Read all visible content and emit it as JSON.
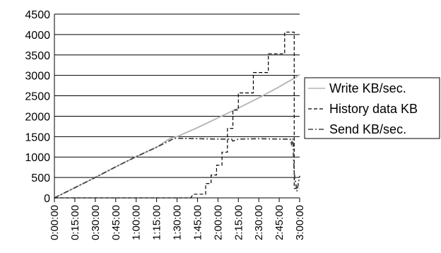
{
  "chart_data": {
    "type": "line",
    "title": "",
    "xlabel": "",
    "ylabel": "",
    "ylim": [
      0,
      4500
    ],
    "yticks": [
      0,
      500,
      1000,
      1500,
      2000,
      2500,
      3000,
      3500,
      4000,
      4500
    ],
    "x_tick_labels": [
      "0:00:00",
      "0:15:00",
      "0:30:00",
      "0:45:00",
      "1:00:00",
      "1:15:00",
      "1:30:00",
      "1:45:00",
      "2:00:00",
      "2:15:00",
      "2:30:00",
      "2:45:00",
      "3:00:00"
    ],
    "grid": "horizontal",
    "legend_position": "right",
    "series": [
      {
        "name": "Write KB/sec.",
        "style": "solid",
        "color": "#b4b4b4",
        "points": [
          [
            "0:00:00",
            0
          ],
          [
            "0:15:00",
            250
          ],
          [
            "0:30:00",
            500
          ],
          [
            "0:45:00",
            760
          ],
          [
            "1:00:00",
            1010
          ],
          [
            "1:15:00",
            1240
          ],
          [
            "1:25:00",
            1460
          ],
          [
            "1:30:00",
            1500
          ],
          [
            "1:45:00",
            1720
          ],
          [
            "2:00:00",
            1960
          ],
          [
            "2:15:00",
            2200
          ],
          [
            "2:30:00",
            2450
          ],
          [
            "2:45:00",
            2720
          ],
          [
            "2:57:00",
            2950
          ],
          [
            "3:00:00",
            3020
          ]
        ]
      },
      {
        "name": "History data KB",
        "style": "dashed",
        "color": "#000000",
        "points": [
          [
            "0:00:00",
            0
          ],
          [
            "1:40:00",
            0
          ],
          [
            "1:42:00",
            90
          ],
          [
            "1:48:00",
            90
          ],
          [
            "1:51:00",
            90
          ],
          [
            "1:51:00",
            350
          ],
          [
            "1:55:00",
            350
          ],
          [
            "1:55:00",
            560
          ],
          [
            "1:59:00",
            560
          ],
          [
            "1:59:00",
            800
          ],
          [
            "2:03:00",
            800
          ],
          [
            "2:03:00",
            1120
          ],
          [
            "2:07:00",
            1120
          ],
          [
            "2:07:00",
            1700
          ],
          [
            "2:11:00",
            1700
          ],
          [
            "2:11:00",
            2150
          ],
          [
            "2:15:00",
            2150
          ],
          [
            "2:15:00",
            2570
          ],
          [
            "2:26:00",
            2570
          ],
          [
            "2:26:00",
            3070
          ],
          [
            "2:37:00",
            3070
          ],
          [
            "2:37:00",
            3530
          ],
          [
            "2:49:00",
            3530
          ],
          [
            "2:49:00",
            4060
          ],
          [
            "2:56:00",
            4060
          ],
          [
            "2:56:00",
            230
          ],
          [
            "3:00:00",
            230
          ]
        ]
      },
      {
        "name": "Send KB/sec.",
        "style": "dash-dot",
        "color": "#444444",
        "points": [
          [
            "0:00:00",
            0
          ],
          [
            "0:15:00",
            250
          ],
          [
            "0:30:00",
            500
          ],
          [
            "0:45:00",
            760
          ],
          [
            "1:00:00",
            1010
          ],
          [
            "1:15:00",
            1240
          ],
          [
            "1:28:00",
            1460
          ],
          [
            "1:45:00",
            1450
          ],
          [
            "2:00:00",
            1440
          ],
          [
            "2:10:00",
            1440
          ],
          [
            "2:11:00",
            1390
          ],
          [
            "2:15:00",
            1440
          ],
          [
            "2:30:00",
            1450
          ],
          [
            "2:45:00",
            1440
          ],
          [
            "2:53:00",
            1440
          ],
          [
            "2:54:00",
            1320
          ],
          [
            "2:55:00",
            1450
          ],
          [
            "2:56:00",
            600
          ],
          [
            "2:58:00",
            160
          ],
          [
            "3:00:00",
            540
          ]
        ]
      }
    ]
  }
}
